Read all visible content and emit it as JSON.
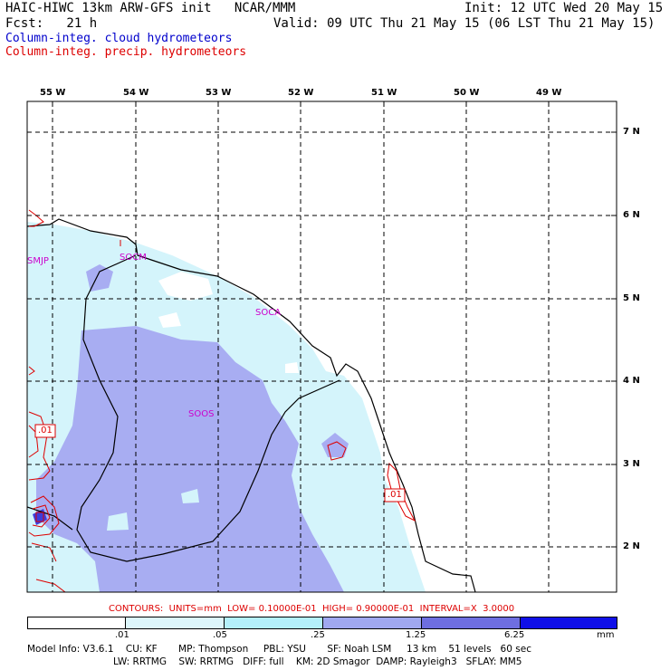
{
  "header": {
    "title_left": "HAIC-HIWC 13km ARW-GFS init   NCAR/MMM",
    "init": "Init: 12 UTC Wed 20 May 15",
    "fcst": "Fcst:   21 h",
    "valid": "Valid: 09 UTC Thu 21 May 15 (06 LST Thu 21 May 15)",
    "field1": "Column-integ. cloud hydrometeors",
    "field2": "Column-integ. precip. hydrometeors"
  },
  "lon_labels": [
    "55 W",
    "54 W",
    "53 W",
    "52 W",
    "51 W",
    "50 W",
    "49 W"
  ],
  "lat_labels": [
    "7 N",
    "6 N",
    "5 N",
    "4 N",
    "3 N",
    "2 N"
  ],
  "stations": [
    "SMJP",
    "SOCM",
    "SOCA",
    "SOOS"
  ],
  "contour_labels": [
    ".01",
    ".01"
  ],
  "contours_line": "CONTOURS:  UNITS=mm  LOW= 0.10000E-01  HIGH= 0.90000E-01  INTERVAL=X  3.0000",
  "colorbar": {
    "ticks": [
      ".01",
      ".05",
      ".25",
      "1.25",
      "6.25"
    ],
    "unit": "mm",
    "colors": [
      "#ffffff",
      "#ddf6fb",
      "#b4f0fa",
      "#a0a8f0",
      "#6e6ee0",
      "#3c3cdc",
      "#1010e8"
    ]
  },
  "footer": {
    "line1": "Model Info: V3.6.1    CU: KF       MP: Thompson     PBL: YSU       SF: Noah LSM     13 km    51 levels   60 sec",
    "line2": "LW: RRTMG    SW: RRTMG   DIFF: full    KM: 2D Smagor  DAMP: Rayleigh3   SFLAY: MM5"
  }
}
